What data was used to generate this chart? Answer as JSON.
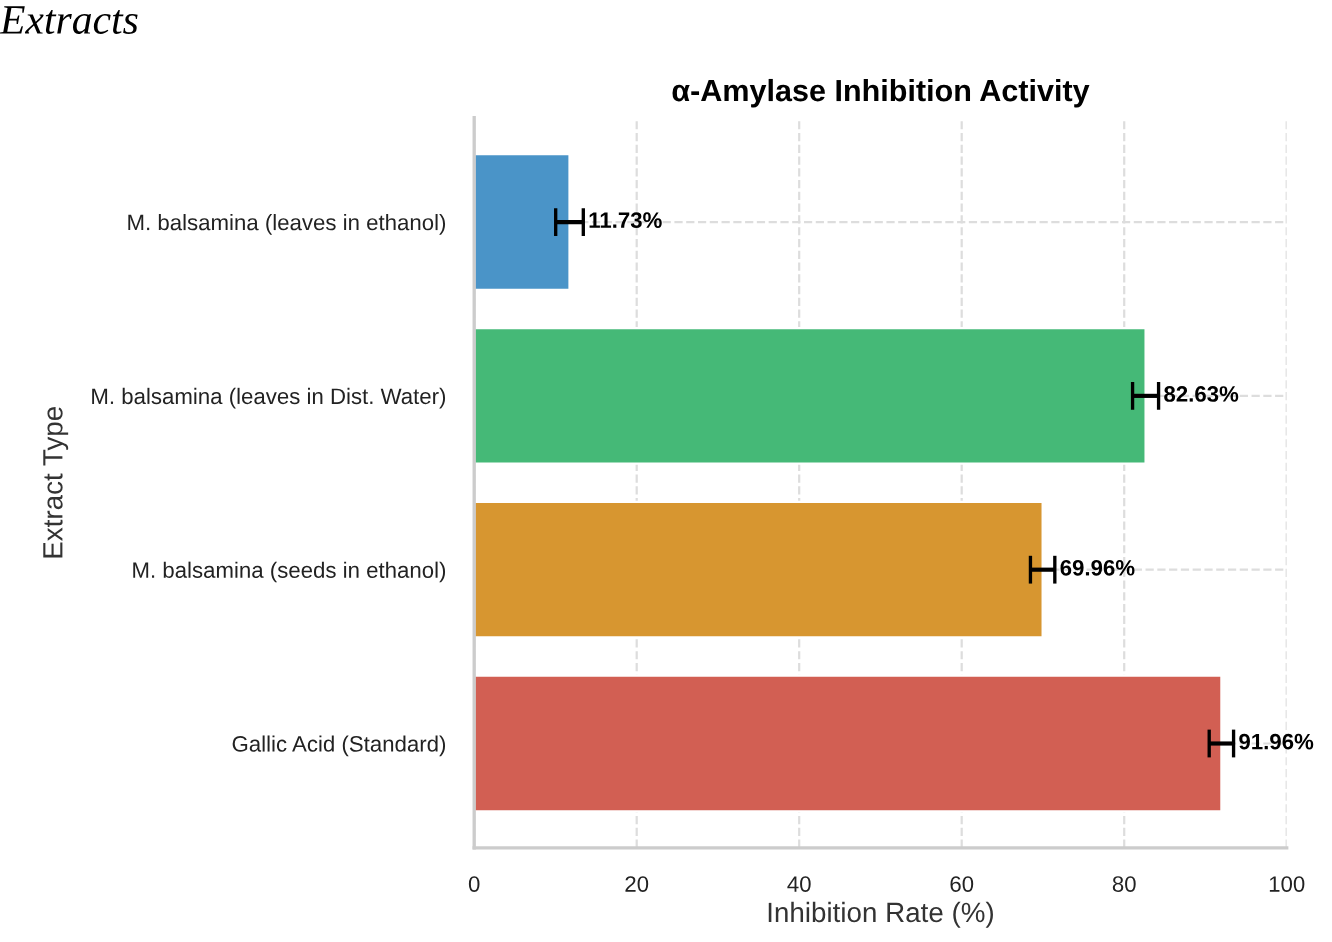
{
  "chart_data": {
    "type": "bar",
    "orientation": "horizontal",
    "title": "α-Amylase Inhibition Activity",
    "xlabel": "Inhibition Rate (%)",
    "ylabel": "Extract Type",
    "categories": [
      "M. balsamina (leaves in ethanol)",
      "M. balsamina (leaves in Dist. Water)",
      "M. balsamina (seeds in ethanol)",
      "Gallic Acid (Standard)"
    ],
    "values": [
      11.73,
      82.63,
      69.96,
      91.96
    ],
    "colors": [
      "#4a94c8",
      "#45b977",
      "#d79630",
      "#d25f53"
    ],
    "errors": [
      1.7,
      1.6,
      1.5,
      1.5
    ],
    "value_labels": [
      "11.73%",
      "82.63%",
      "69.96%",
      "91.96%"
    ],
    "xlim": [
      0,
      100
    ],
    "xticks": [
      0,
      20,
      40,
      60,
      80,
      100
    ],
    "grid": true,
    "annotations": [
      "Extracts"
    ]
  }
}
